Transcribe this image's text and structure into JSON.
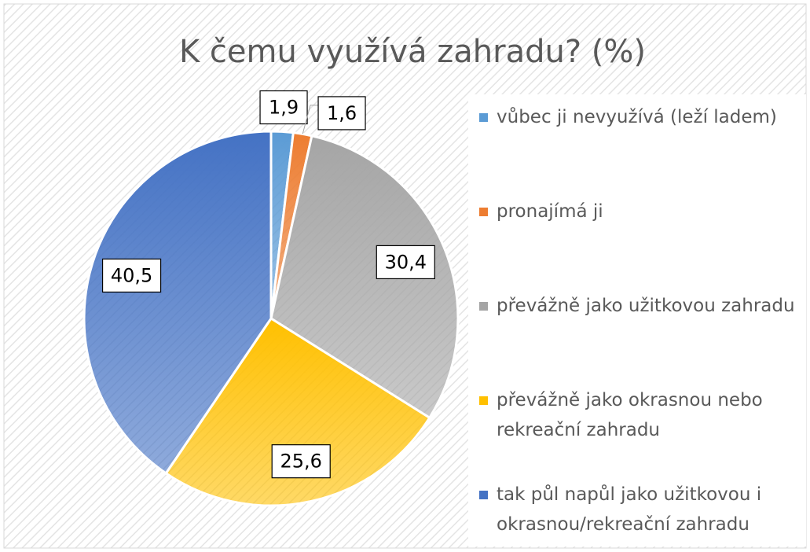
{
  "chart_data": {
    "type": "pie",
    "title": "K čemu využívá zahradu? (%)",
    "categories": [
      "vůbec ji nevyužívá (leží ladem)",
      "pronajímá ji",
      "převážně jako užitkovou zahradu",
      "převážně jako okrasnou nebo rekreační zahradu",
      "tak půl napůl jako užitkovou i okrasnou/rekreační zahradu"
    ],
    "values": [
      1.9,
      1.6,
      30.4,
      25.6,
      40.5
    ],
    "value_labels": [
      "1,9",
      "1,6",
      "30,4",
      "25,6",
      "40,5"
    ],
    "colors": [
      "#5b9bd5",
      "#ed7d31",
      "#a5a5a5",
      "#ffc000",
      "#4472c4"
    ],
    "legend": "right"
  }
}
